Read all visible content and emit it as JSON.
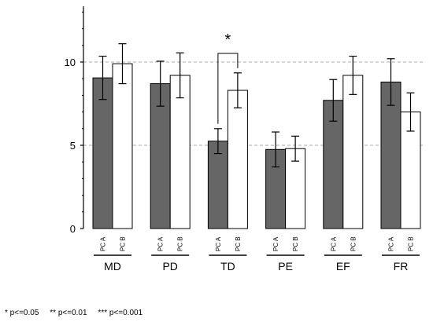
{
  "chart_data": {
    "type": "bar",
    "categories": [
      "MD",
      "PD",
      "TD",
      "PE",
      "EF",
      "FR"
    ],
    "sub_categories": [
      "PC A",
      "PC B"
    ],
    "series": [
      {
        "name": "PC A",
        "values": [
          9.05,
          8.7,
          5.25,
          4.75,
          7.7,
          8.8
        ],
        "errors": [
          1.3,
          1.35,
          0.75,
          1.05,
          1.25,
          1.4
        ],
        "color": "#666666"
      },
      {
        "name": "PC B",
        "values": [
          9.9,
          9.2,
          8.3,
          4.8,
          9.2,
          7.0
        ],
        "errors": [
          1.2,
          1.35,
          1.05,
          0.75,
          1.15,
          1.15
        ],
        "color": "#ffffff"
      }
    ],
    "ylim": [
      0,
      13.5
    ],
    "yticks": [
      0,
      5,
      10
    ],
    "dashed_gridlines": [
      5,
      10
    ],
    "significance": [
      {
        "category": "TD",
        "label": "*"
      }
    ],
    "title": "",
    "xlabel": "",
    "ylabel": ""
  },
  "footnote": "* p<=0.05     ** p<=0.01     *** p<=0.001",
  "colors": {
    "bar_dark": "#666666",
    "bar_light": "#ffffff",
    "stroke": "#000000",
    "grid": "#aaaaaa"
  }
}
